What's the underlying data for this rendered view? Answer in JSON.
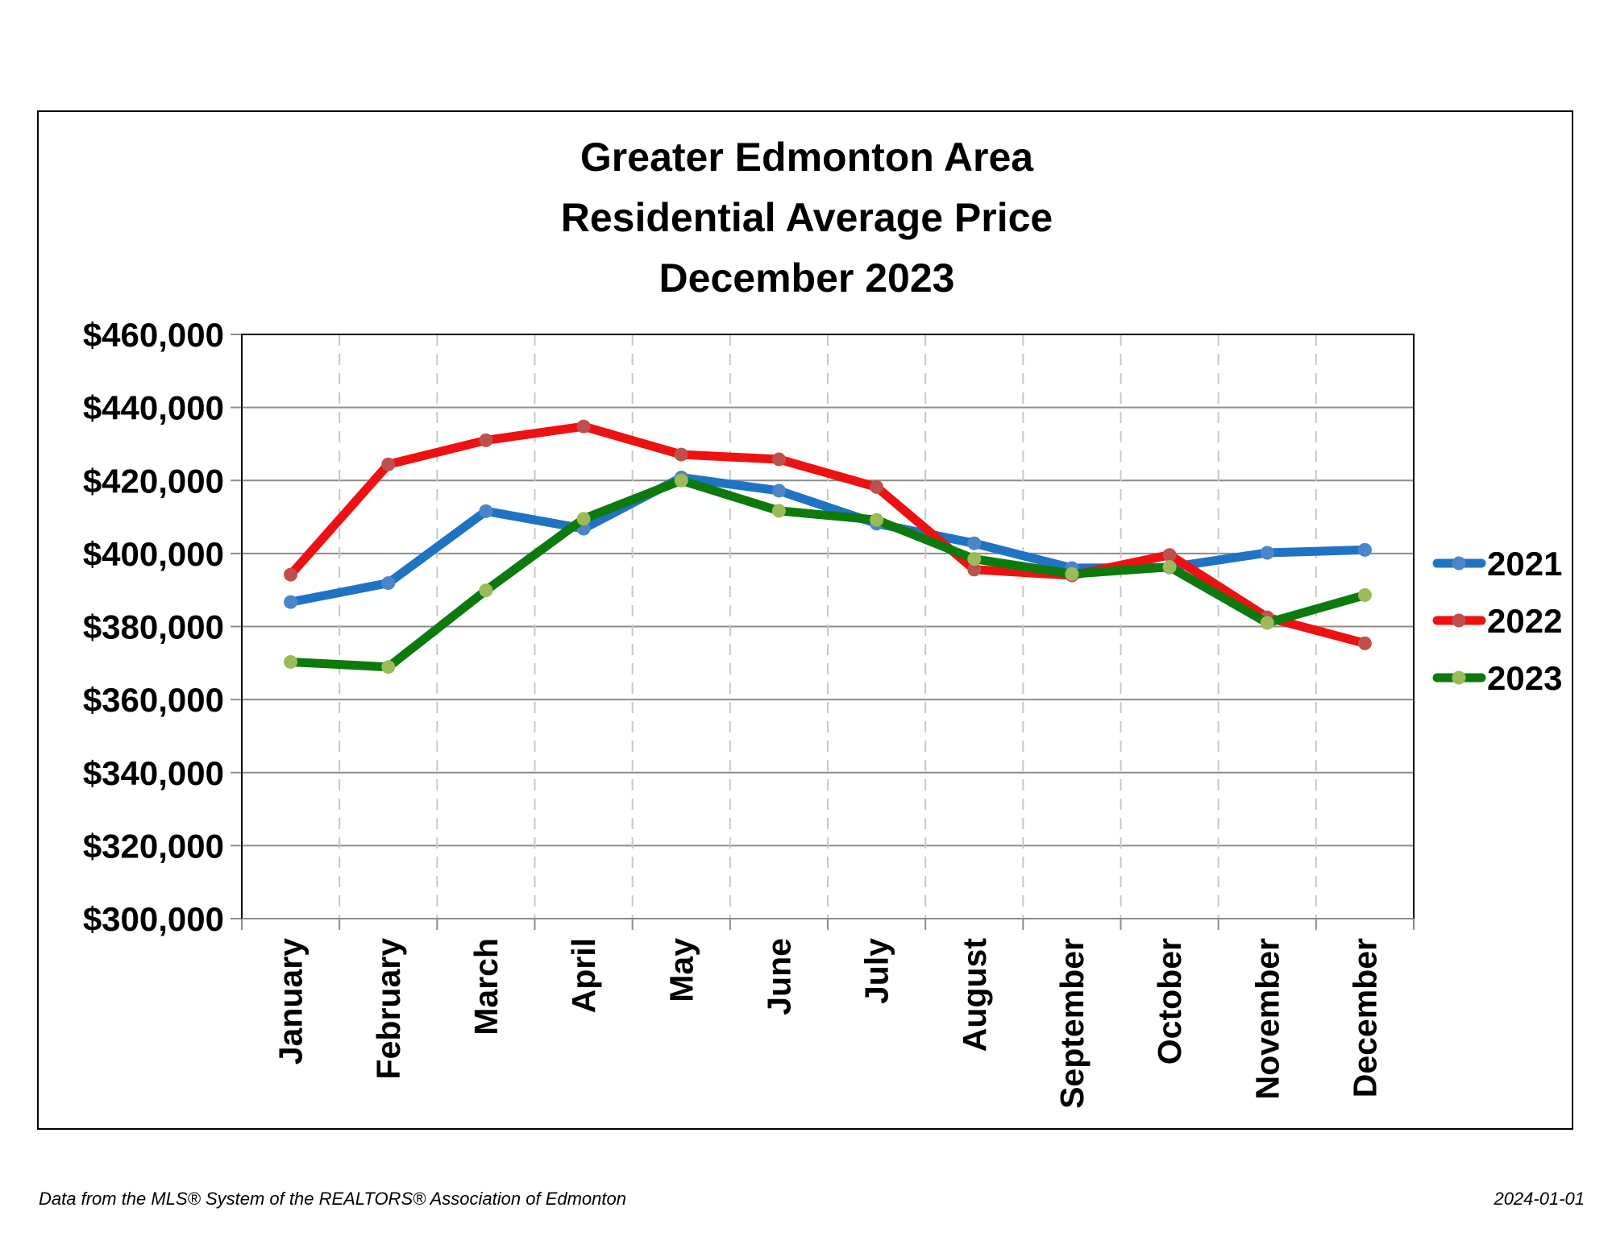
{
  "footer": {
    "source": "Data from the MLS® System of the REALTORS® Association of Edmonton",
    "date": "2024-01-01"
  },
  "chart_data": {
    "type": "line",
    "title": [
      "Greater Edmonton Area",
      "Residential Average Price",
      "December 2023"
    ],
    "xlabel": "",
    "ylabel": "",
    "categories": [
      "January",
      "February",
      "March",
      "April",
      "May",
      "June",
      "July",
      "August",
      "September",
      "October",
      "November",
      "December"
    ],
    "ylim": [
      300000,
      460000
    ],
    "yticks": [
      300000,
      320000,
      340000,
      360000,
      380000,
      400000,
      420000,
      440000,
      460000
    ],
    "ytick_labels": [
      "$300,000",
      "$320,000",
      "$340,000",
      "$360,000",
      "$380,000",
      "$400,000",
      "$420,000",
      "$440,000",
      "$460,000"
    ],
    "grid": {
      "horizontal": true,
      "vertical": "dashed"
    },
    "legend_position": "right",
    "series": [
      {
        "name": "2021",
        "color": "#1f73c4",
        "marker_color": "#4a86c8",
        "values": [
          386700,
          391900,
          411600,
          406800,
          420800,
          417200,
          408200,
          402800,
          396000,
          396200,
          400200,
          401000
        ]
      },
      {
        "name": "2022",
        "color": "#ee1111",
        "marker_color": "#c0504d",
        "values": [
          394200,
          424400,
          431000,
          434800,
          427100,
          425800,
          418200,
          395600,
          394000,
          399600,
          382500,
          375400
        ]
      },
      {
        "name": "2023",
        "color": "#0d7a0d",
        "marker_color": "#9bbb59",
        "values": [
          370300,
          368900,
          389900,
          409500,
          420000,
          411700,
          409200,
          398500,
          394400,
          396300,
          381000,
          388600
        ]
      }
    ]
  }
}
